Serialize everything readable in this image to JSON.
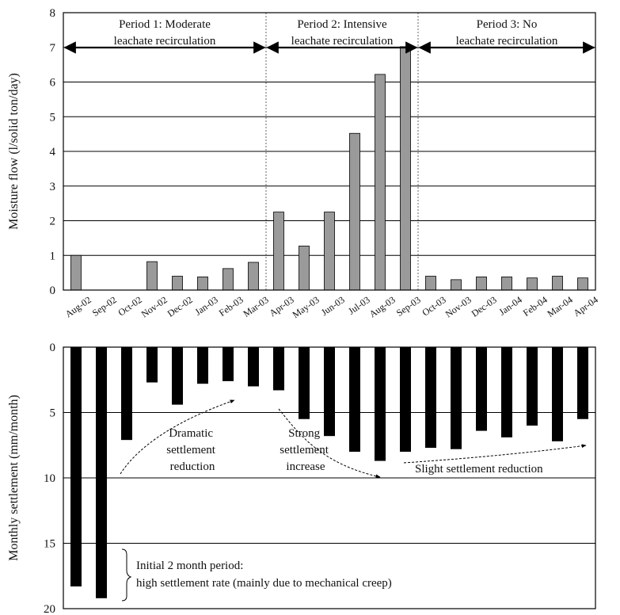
{
  "chart_data": [
    {
      "type": "bar",
      "ylabel": "Moisture flow (l/solid ton/day)",
      "ylim": [
        0,
        8
      ],
      "yticks": [
        0,
        1,
        2,
        3,
        4,
        5,
        6,
        7,
        8
      ],
      "grid": true,
      "bar_color": "#9a9a9a",
      "categories": [
        "Aug-02",
        "Sep-02",
        "Oct-02",
        "Nov-02",
        "Dec-02",
        "Jan-03",
        "Feb-03",
        "Mar-03",
        "Apr-03",
        "May-03",
        "Jun-03",
        "Jul-03",
        "Aug-03",
        "Sep-03",
        "Oct-03",
        "Nov-03",
        "Dec-03",
        "Jan-04",
        "Feb-04",
        "Mar-04",
        "Apr-04"
      ],
      "values": [
        1.0,
        0,
        0,
        0.82,
        0.4,
        0.38,
        0.62,
        0.8,
        2.25,
        1.27,
        2.25,
        4.52,
        6.22,
        7.02,
        0.4,
        0.3,
        0.38,
        0.38,
        0.35,
        0.4,
        0.35
      ],
      "periods": [
        {
          "line1": "Period 1: Moderate",
          "line2": "leachate recirculation"
        },
        {
          "line1": "Period 2: Intensive",
          "line2": "leachate recirculation"
        },
        {
          "line1": "Period 3: No",
          "line2": "leachate recirculation"
        }
      ]
    },
    {
      "type": "bar",
      "ylabel": "Monthly settlement (mm/month)",
      "ylim": [
        0,
        20
      ],
      "inverted": true,
      "yticks": [
        0,
        5,
        10,
        15,
        20
      ],
      "grid": true,
      "bar_color": "#000000",
      "values": [
        18.3,
        19.2,
        7.1,
        2.7,
        4.4,
        2.8,
        2.6,
        3.0,
        3.3,
        5.5,
        6.8,
        8.0,
        8.7,
        8.0,
        7.7,
        7.8,
        6.4,
        6.9,
        6.0,
        7.2,
        5.5
      ],
      "annotations": [
        {
          "id": "dramatic",
          "lines": [
            "Dramatic",
            "settlement",
            "reduction"
          ]
        },
        {
          "id": "strong",
          "lines": [
            "Strong",
            "settlement",
            "increase"
          ]
        },
        {
          "id": "slight",
          "lines": [
            "Slight settlement reduction"
          ]
        },
        {
          "id": "initial",
          "lines": [
            "Initial 2 month period:",
            "high settlement rate (mainly due to mechanical creep)"
          ]
        }
      ]
    }
  ]
}
